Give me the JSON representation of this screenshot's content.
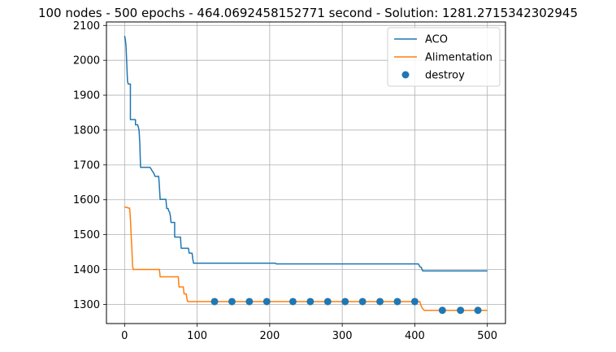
{
  "chart_data": {
    "type": "line",
    "title": "100 nodes - 500 epochs - 464.0692458152771 second - Solution: 1281.2715342302945",
    "xlabel": "",
    "ylabel": "",
    "xlim": [
      -25,
      525
    ],
    "ylim": [
      1245,
      2110
    ],
    "xticks": [
      0,
      100,
      200,
      300,
      400,
      500
    ],
    "yticks": [
      1300,
      1400,
      1500,
      1600,
      1700,
      1800,
      1900,
      2000,
      2100
    ],
    "grid": true,
    "legend_position": "upper right",
    "series": [
      {
        "name": "ACO",
        "kind": "line",
        "color": "#1f77b4",
        "points": [
          [
            0,
            2070
          ],
          [
            1,
            2060
          ],
          [
            2,
            2040
          ],
          [
            3,
            1990
          ],
          [
            4,
            1940
          ],
          [
            5,
            1932
          ],
          [
            8,
            1932
          ],
          [
            8,
            1830
          ],
          [
            15,
            1830
          ],
          [
            15,
            1815
          ],
          [
            18,
            1815
          ],
          [
            19,
            1808
          ],
          [
            20,
            1798
          ],
          [
            21,
            1760
          ],
          [
            22,
            1693
          ],
          [
            35,
            1693
          ],
          [
            36,
            1690
          ],
          [
            38,
            1683
          ],
          [
            40,
            1677
          ],
          [
            42,
            1667
          ],
          [
            47,
            1667
          ],
          [
            48,
            1637
          ],
          [
            49,
            1601
          ],
          [
            57,
            1601
          ],
          [
            58,
            1575
          ],
          [
            60,
            1575
          ],
          [
            61,
            1567
          ],
          [
            62,
            1565
          ],
          [
            63,
            1555
          ],
          [
            64,
            1535
          ],
          [
            69,
            1535
          ],
          [
            69,
            1493
          ],
          [
            77,
            1493
          ],
          [
            78,
            1461
          ],
          [
            88,
            1461
          ],
          [
            89,
            1447
          ],
          [
            93,
            1447
          ],
          [
            94,
            1430
          ],
          [
            95,
            1418
          ],
          [
            208,
            1418
          ],
          [
            209,
            1416
          ],
          [
            405,
            1416
          ],
          [
            407,
            1408
          ],
          [
            409,
            1406
          ],
          [
            410,
            1400
          ],
          [
            411,
            1396
          ],
          [
            500,
            1396
          ]
        ]
      },
      {
        "name": "Alimentation",
        "kind": "line",
        "color": "#ff7f0e",
        "points": [
          [
            0,
            1580
          ],
          [
            2,
            1578
          ],
          [
            4,
            1578
          ],
          [
            5,
            1576
          ],
          [
            7,
            1576
          ],
          [
            8,
            1545
          ],
          [
            9,
            1500
          ],
          [
            10,
            1460
          ],
          [
            11,
            1410
          ],
          [
            12,
            1400
          ],
          [
            48,
            1400
          ],
          [
            49,
            1379
          ],
          [
            74,
            1379
          ],
          [
            75,
            1350
          ],
          [
            81,
            1350
          ],
          [
            82,
            1330
          ],
          [
            85,
            1330
          ],
          [
            86,
            1315
          ],
          [
            87,
            1308
          ],
          [
            407,
            1308
          ],
          [
            408,
            1300
          ],
          [
            410,
            1290
          ],
          [
            413,
            1283
          ],
          [
            500,
            1283
          ]
        ]
      },
      {
        "name": "destroy",
        "kind": "scatter",
        "color": "#1f77b4",
        "points": [
          [
            124,
            1308
          ],
          [
            148,
            1308
          ],
          [
            172,
            1308
          ],
          [
            196,
            1308
          ],
          [
            232,
            1308
          ],
          [
            256,
            1308
          ],
          [
            280,
            1308
          ],
          [
            304,
            1308
          ],
          [
            328,
            1308
          ],
          [
            352,
            1308
          ],
          [
            376,
            1308
          ],
          [
            400,
            1308
          ],
          [
            438,
            1283
          ],
          [
            463,
            1283
          ],
          [
            487,
            1283
          ]
        ]
      }
    ]
  }
}
